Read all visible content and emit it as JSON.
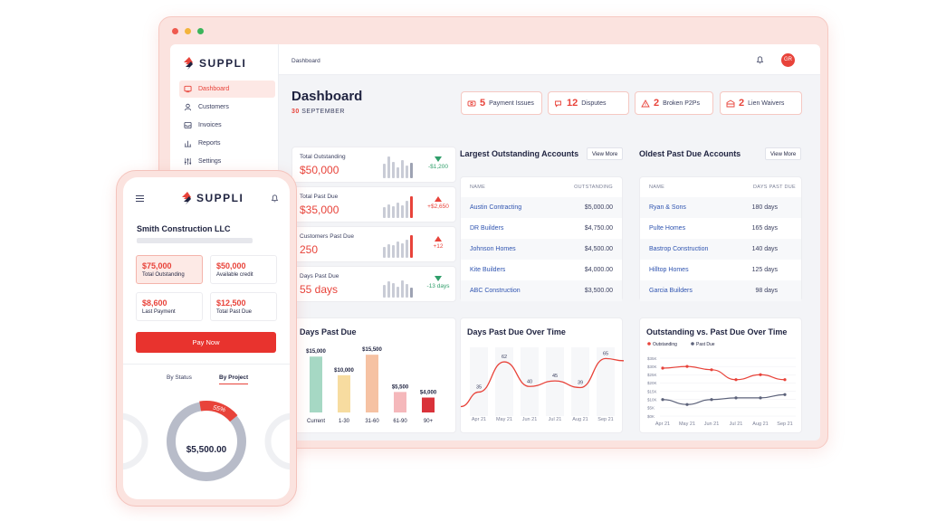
{
  "brand": "SUPPLI",
  "colors": {
    "accent": "#e8433a",
    "link": "#2f54b0",
    "text": "#1f2340",
    "positive": "#2f9e6a",
    "chart_green": "#a6d8c4",
    "chart_yellow": "#f7dca0",
    "chart_peach": "#f6c2a3",
    "chart_pink": "#f5b8bb",
    "chart_red": "#d9323a"
  },
  "sidebar": {
    "items": [
      {
        "label": "Dashboard",
        "icon": "dashboard-icon",
        "active": true
      },
      {
        "label": "Customers",
        "icon": "users-icon"
      },
      {
        "label": "Invoices",
        "icon": "inbox-icon"
      },
      {
        "label": "Reports",
        "icon": "bar-chart-icon"
      },
      {
        "label": "Settings",
        "icon": "sliders-icon"
      }
    ]
  },
  "header": {
    "breadcrumb": "Dashboard",
    "avatar": "GR"
  },
  "page": {
    "title": "Dashboard",
    "date_day": "30",
    "date_month": "SEPTEMBER"
  },
  "pills": [
    {
      "num": "5",
      "label": "Payment Issues",
      "icon": "money-icon"
    },
    {
      "num": "12",
      "label": "Disputes",
      "icon": "chat-icon"
    },
    {
      "num": "2",
      "label": "Broken P2Ps",
      "icon": "warning-icon"
    },
    {
      "num": "2",
      "label": "Lien Waivers",
      "icon": "building-icon"
    }
  ],
  "kpis": [
    {
      "label": "Total Outstanding",
      "value": "$50,000",
      "change": "-$1,200",
      "direction": "down"
    },
    {
      "label": "Total Past Due",
      "value": "$35,000",
      "change": "+$2,650",
      "direction": "up"
    },
    {
      "label": "Customers Past Due",
      "value": "250",
      "change": "+12",
      "direction": "up"
    },
    {
      "label": "Days Past Due",
      "value": "55 days",
      "change": "-13 days",
      "direction": "down"
    }
  ],
  "largest": {
    "title": "Largest Outstanding Accounts",
    "view_more": "View More",
    "col_name": "NAME",
    "col_value": "OUTSTANDING",
    "rows": [
      {
        "name": "Austin Contracting",
        "value": "$5,000.00"
      },
      {
        "name": "DR Builders",
        "value": "$4,750.00"
      },
      {
        "name": "Johnson Homes",
        "value": "$4,500.00"
      },
      {
        "name": "Kite Builders",
        "value": "$4,000.00"
      },
      {
        "name": "ABC Construction",
        "value": "$3,500.00"
      }
    ]
  },
  "oldest": {
    "title": "Oldest Past Due Accounts",
    "view_more": "View More",
    "col_name": "NAME",
    "col_value": "DAYS PAST DUE",
    "rows": [
      {
        "name": "Ryan & Sons",
        "value": "180 days"
      },
      {
        "name": "Pulte Homes",
        "value": "165 days"
      },
      {
        "name": "Bastrop Construction",
        "value": "140 days"
      },
      {
        "name": "Hilltop Homes",
        "value": "125 days"
      },
      {
        "name": "Garcia Builders",
        "value": "98 days"
      }
    ]
  },
  "chart_data": [
    {
      "type": "bar",
      "title": "Days Past Due",
      "categories": [
        "Current",
        "1-30",
        "31-60",
        "61-90",
        "90+"
      ],
      "values": [
        15000,
        10000,
        15500,
        5500,
        4000
      ],
      "value_labels": [
        "$15,000",
        "$10,000",
        "$15,500",
        "$5,500",
        "$4,000"
      ],
      "ylim": [
        0,
        17000
      ]
    },
    {
      "type": "line",
      "title": "Days Past Due Over Time",
      "categories": [
        "Apr 21",
        "May 21",
        "Jun 21",
        "Jul 21",
        "Aug 21",
        "Sep 21"
      ],
      "series": [
        {
          "values": [
            35,
            62,
            40,
            45,
            39,
            65
          ]
        }
      ],
      "ylim": [
        20,
        75
      ]
    },
    {
      "type": "line",
      "title": "Outstanding vs. Past Due Over Time",
      "categories": [
        "Apr 21",
        "May 21",
        "Jun 21",
        "Jul 21",
        "Aug 21",
        "Sep 21"
      ],
      "legend": "top-left",
      "y_ticks": [
        "$35K",
        "$30K",
        "$25K",
        "$20K",
        "$15K",
        "$10K",
        "$5K",
        "$0K"
      ],
      "series": [
        {
          "name": "Outstanding",
          "values": [
            29,
            30,
            28,
            22,
            25,
            22
          ]
        },
        {
          "name": "Past Due",
          "values": [
            10,
            7,
            10,
            11,
            11,
            13
          ]
        }
      ],
      "ylim": [
        0,
        35
      ]
    }
  ],
  "phone": {
    "company": "Smith Construction LLC",
    "tiles": [
      {
        "value": "$75,000",
        "label": "Total Outstanding",
        "highlight": true
      },
      {
        "value": "$50,000",
        "label": "Available credit"
      },
      {
        "value": "$8,600",
        "label": "Last Payment"
      },
      {
        "value": "$12,500",
        "label": "Total Past Due"
      }
    ],
    "pay_button": "Pay Now",
    "tabs": [
      "By Status",
      "By Project"
    ],
    "donut_value": "$5,500.00",
    "donut_percent": "55%",
    "donut_fraction": 0.55
  }
}
